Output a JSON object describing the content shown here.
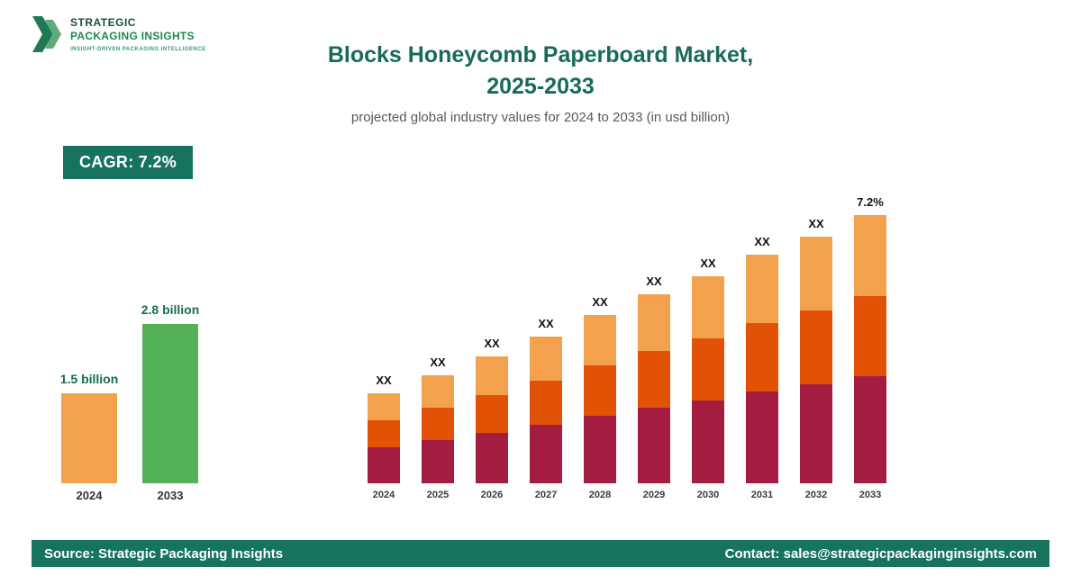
{
  "logo": {
    "line1": "STRATEGIC",
    "line2": "PACKAGING INSIGHTS",
    "tagline": "INSIGHT-DRIVEN PACKAGING INTELLIGENCE"
  },
  "header": {
    "title_line1": "Blocks Honeycomb Paperboard Market,",
    "title_line2": "2025-2033",
    "subtitle": "projected global industry values for 2024 to 2033 (in usd billion)"
  },
  "cagr_badge": {
    "text": "CAGR: 7.2%"
  },
  "summary_chart": {
    "bars": [
      {
        "year": "2024",
        "label": "1.5 billion",
        "value": 1.5,
        "color": "#F4A14E",
        "height": 100
      },
      {
        "year": "2033",
        "label": "2.8 billion",
        "value": 2.8,
        "color": "#53B257",
        "height": 177
      }
    ]
  },
  "chart_data": {
    "type": "bar",
    "stacked": true,
    "title": "Blocks Honeycomb Paperboard Market, 2025-2033",
    "subtitle": "projected global industry values for 2024 to 2033 (in usd billion)",
    "cagr": "7.2%",
    "categories": [
      "2024",
      "2025",
      "2026",
      "2027",
      "2028",
      "2029",
      "2030",
      "2031",
      "2032",
      "2033"
    ],
    "bar_labels": [
      "XX",
      "XX",
      "XX",
      "XX",
      "XX",
      "XX",
      "XX",
      "XX",
      "XX",
      "7.2%"
    ],
    "known_values": {
      "2024": 1.5,
      "2033": 2.8
    },
    "series": [
      {
        "name": "bottom",
        "color": "#A31D41",
        "values": [
          40,
          48,
          56,
          65,
          75,
          84,
          92,
          102,
          110,
          119
        ]
      },
      {
        "name": "middle",
        "color": "#E25206",
        "values": [
          30,
          36,
          42,
          49,
          56,
          63,
          69,
          76,
          82,
          89
        ]
      },
      {
        "name": "top",
        "color": "#F4A14E",
        "values": [
          30,
          36,
          43,
          49,
          56,
          63,
          69,
          76,
          82,
          90
        ]
      }
    ],
    "xlabel": "",
    "ylabel": "",
    "legend": "none",
    "grid": false
  },
  "footer": {
    "source": "Source: Strategic Packaging Insights",
    "contact": "Contact: sales@strategicpackaginginsights.com"
  },
  "colors": {
    "teal": "#17735E",
    "title_teal": "#176B57",
    "dark_red": "#A31D41",
    "orange_red": "#E25206",
    "light_orange": "#F4A14E",
    "green": "#53B257"
  }
}
